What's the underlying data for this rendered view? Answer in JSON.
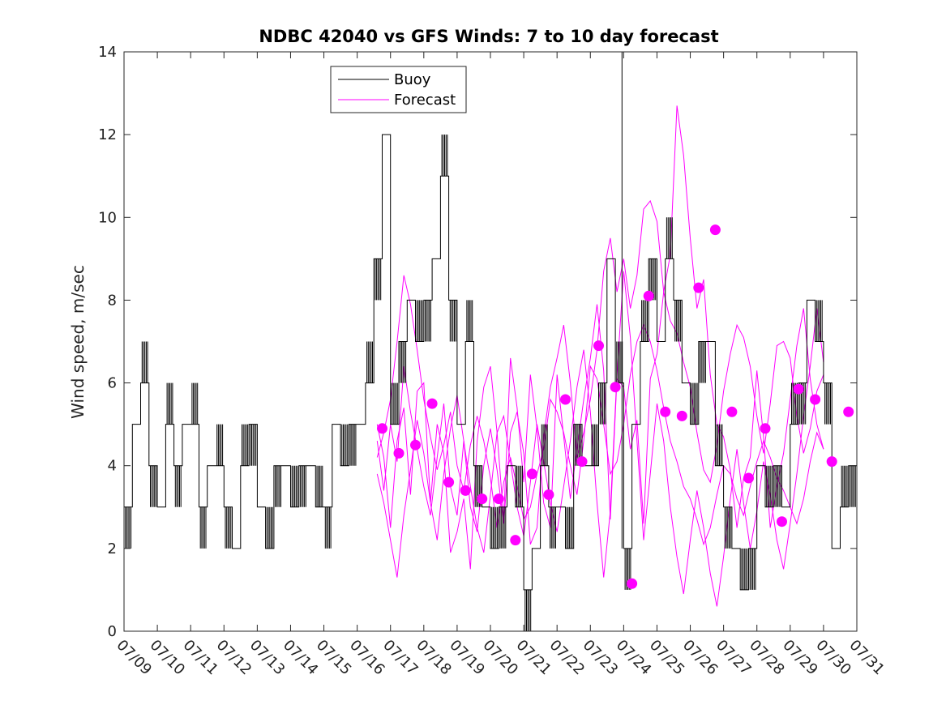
{
  "chart_data": {
    "type": "line",
    "title": "NDBC 42040 vs GFS Winds: 7 to 10 day forecast",
    "xlabel": "",
    "ylabel": "Wind speed, m/sec",
    "xlim": [
      "07/09",
      "07/31"
    ],
    "ylim": [
      0,
      14
    ],
    "yticks": [
      0,
      2,
      4,
      6,
      8,
      10,
      12,
      14
    ],
    "xtick_labels": [
      "07/09",
      "07/10",
      "07/11",
      "07/12",
      "07/13",
      "07/14",
      "07/15",
      "07/16",
      "07/17",
      "07/18",
      "07/19",
      "07/20",
      "07/21",
      "07/22",
      "07/23",
      "07/24",
      "07/25",
      "07/26",
      "07/27",
      "07/28",
      "07/29",
      "07/30",
      "07/31"
    ],
    "grid": false,
    "legend": {
      "position": "top-left",
      "entries": [
        "Buoy",
        "Forecast"
      ]
    },
    "colors": {
      "buoy": "#000000",
      "forecast": "#ff00ff"
    },
    "series": [
      {
        "name": "Buoy",
        "x_day": [
          9.0,
          9.25,
          9.5,
          9.75,
          10.0,
          10.25,
          10.5,
          10.75,
          11.0,
          11.25,
          11.5,
          11.75,
          12.0,
          12.25,
          12.5,
          12.75,
          13.0,
          13.25,
          13.5,
          13.75,
          14.0,
          14.25,
          14.5,
          14.75,
          15.0,
          15.25,
          15.5,
          15.75,
          16.0,
          16.25,
          16.5,
          16.75,
          17.0,
          17.25,
          17.5,
          17.75,
          18.0,
          18.25,
          18.5,
          18.75,
          19.0,
          19.25,
          19.5,
          19.75,
          20.0,
          20.25,
          20.5,
          20.75,
          21.0,
          21.25,
          21.5,
          21.75,
          22.0,
          22.25,
          22.5,
          22.75,
          23.0,
          23.25,
          23.5,
          23.75,
          24.0,
          24.25,
          24.5,
          24.75,
          25.0,
          25.25,
          25.5,
          25.75,
          26.0,
          26.25,
          26.5,
          26.75,
          27.0,
          27.25,
          27.5,
          27.75,
          28.0,
          28.25,
          28.5,
          28.75,
          29.0,
          29.25,
          29.5,
          29.75,
          30.0,
          30.25,
          30.5,
          30.75,
          31.0
        ],
        "values": [
          3,
          5,
          6,
          4,
          3,
          5,
          4,
          5,
          5,
          3,
          4,
          4,
          3,
          2,
          4,
          5,
          3,
          2,
          4,
          4,
          3,
          4,
          4,
          3,
          3,
          5,
          4,
          5,
          5,
          6,
          9,
          12,
          5,
          7,
          8,
          7,
          8,
          9,
          11,
          8,
          5,
          7,
          4,
          3,
          2,
          3,
          4,
          3,
          1,
          2,
          4,
          3,
          3,
          2,
          5,
          4,
          4,
          6,
          9,
          6,
          2,
          5,
          7,
          9,
          7,
          9,
          8,
          6,
          5,
          7,
          7,
          4,
          3,
          2,
          1,
          2,
          4,
          3,
          4,
          3,
          5,
          6,
          8,
          7,
          6,
          2,
          3,
          4,
          4
        ]
      },
      {
        "name": "Forecast",
        "x_day": [
          16.75,
          17.25,
          17.75,
          18.25,
          18.75,
          19.25,
          19.75,
          20.25,
          20.75,
          21.25,
          21.75,
          22.25,
          22.75,
          23.25,
          23.75,
          24.25,
          24.75,
          25.25,
          25.75,
          26.25,
          26.75,
          27.25,
          27.75,
          28.25,
          28.75,
          29.25,
          29.75,
          30.25,
          30.75
        ],
        "values": [
          4.9,
          4.3,
          4.5,
          5.5,
          3.6,
          3.4,
          3.2,
          3.2,
          2.2,
          3.8,
          3.3,
          5.6,
          4.1,
          6.9,
          5.9,
          1.15,
          8.1,
          5.3,
          5.2,
          8.3,
          9.7,
          5.3,
          3.7,
          4.9,
          2.65,
          5.85,
          5.6,
          4.1,
          5.3
        ]
      }
    ],
    "forecast_traces": [
      [
        5.0,
        4.2,
        2.5,
        4.6,
        5.4,
        3.3,
        5.8,
        6.0,
        3.1,
        5.0,
        4.3,
        1.9,
        2.4,
        3.2,
        1.5,
        4.6,
        5.9,
        6.4,
        4.8,
        2.7,
        6.6,
        5.4,
        3.6,
        6.2,
        4.9,
        3.1,
        2.5,
        6.2,
        4.7,
        3.2,
        4.4,
        5.6,
        6.6,
        7.9,
        6.3,
        2.7,
        6.1,
        5.9,
        4.4,
        5.1,
        2.6,
        6.1,
        6.7,
        8.2,
        9.1,
        12.7,
        11.5,
        9.5,
        7.8,
        8.5,
        6.2,
        5.0,
        4.7,
        3.9,
        2.5,
        3.7,
        4.2,
        6.3,
        4.7,
        2.5,
        3.5,
        4.3,
        5.6,
        6.9,
        7.8,
        6.1,
        5.0,
        4.4
      ],
      [
        4.6,
        3.4,
        5.0,
        4.1,
        6.4,
        5.3,
        4.4,
        3.5,
        2.8,
        4.2,
        5.5,
        3.5,
        2.8,
        4.6,
        3.0,
        2.4,
        4.0,
        4.9,
        3.9,
        2.6,
        4.8,
        5.3,
        4.3,
        2.1,
        2.5,
        4.7,
        5.9,
        6.6,
        7.4,
        6.0,
        4.2,
        4.8,
        5.6,
        6.8,
        8.7,
        9.5,
        8.2,
        9.0,
        7.8,
        8.6,
        10.2,
        10.4,
        9.9,
        8.2,
        7.5,
        7.2,
        6.5,
        5.9,
        4.8,
        3.9,
        3.6,
        4.5,
        5.8,
        6.7,
        7.4,
        7.1,
        6.4,
        5.2,
        4.3,
        5.5,
        6.9,
        7.0,
        6.6,
        5.2,
        4.3,
        4.9,
        5.8,
        6.2
      ],
      [
        4.2,
        4.8,
        5.6,
        7.0,
        8.6,
        7.9,
        6.8,
        5.6,
        4.7,
        3.9,
        4.5,
        5.3,
        4.0,
        3.4,
        4.5,
        5.2,
        4.6,
        3.7,
        2.5,
        3.6,
        4.2,
        3.5,
        2.7,
        3.0,
        3.8,
        4.4,
        5.6,
        5.3,
        4.8,
        4.0,
        3.3,
        4.6,
        6.4,
        6.1,
        5.0,
        3.8,
        4.1,
        5.0,
        6.2,
        7.0,
        7.4,
        7.0,
        6.3,
        5.4,
        4.6,
        4.1,
        3.5,
        3.2,
        2.7,
        2.1,
        2.5,
        3.3,
        4.0,
        3.8,
        3.2,
        2.8,
        3.5,
        4.1,
        4.6,
        4.2,
        3.7,
        3.4,
        3.0,
        2.6,
        3.2,
        4.1,
        4.8,
        4.4
      ],
      [
        3.8,
        3.1,
        2.2,
        1.3,
        2.8,
        3.9,
        5.1,
        4.3,
        3.1,
        2.2,
        3.8,
        4.9,
        5.7,
        4.6,
        3.5,
        2.5,
        1.9,
        3.3,
        4.8,
        5.2,
        4.1,
        3.0,
        2.3,
        3.6,
        5.0,
        4.1,
        3.1,
        2.4,
        3.5,
        4.6,
        5.9,
        6.8,
        5.3,
        3.1,
        1.3,
        2.9,
        6.2,
        8.7,
        7.1,
        4.6,
        2.2,
        3.8,
        5.5,
        4.6,
        3.0,
        1.8,
        0.9,
        2.2,
        3.4,
        2.5,
        1.4,
        0.6,
        1.8,
        3.2,
        4.4,
        3.1,
        2.0,
        2.9,
        4.1,
        3.3,
        2.2,
        1.5,
        2.6,
        3.8,
        5.2,
        6.4,
        7.8,
        6.5
      ]
    ]
  }
}
